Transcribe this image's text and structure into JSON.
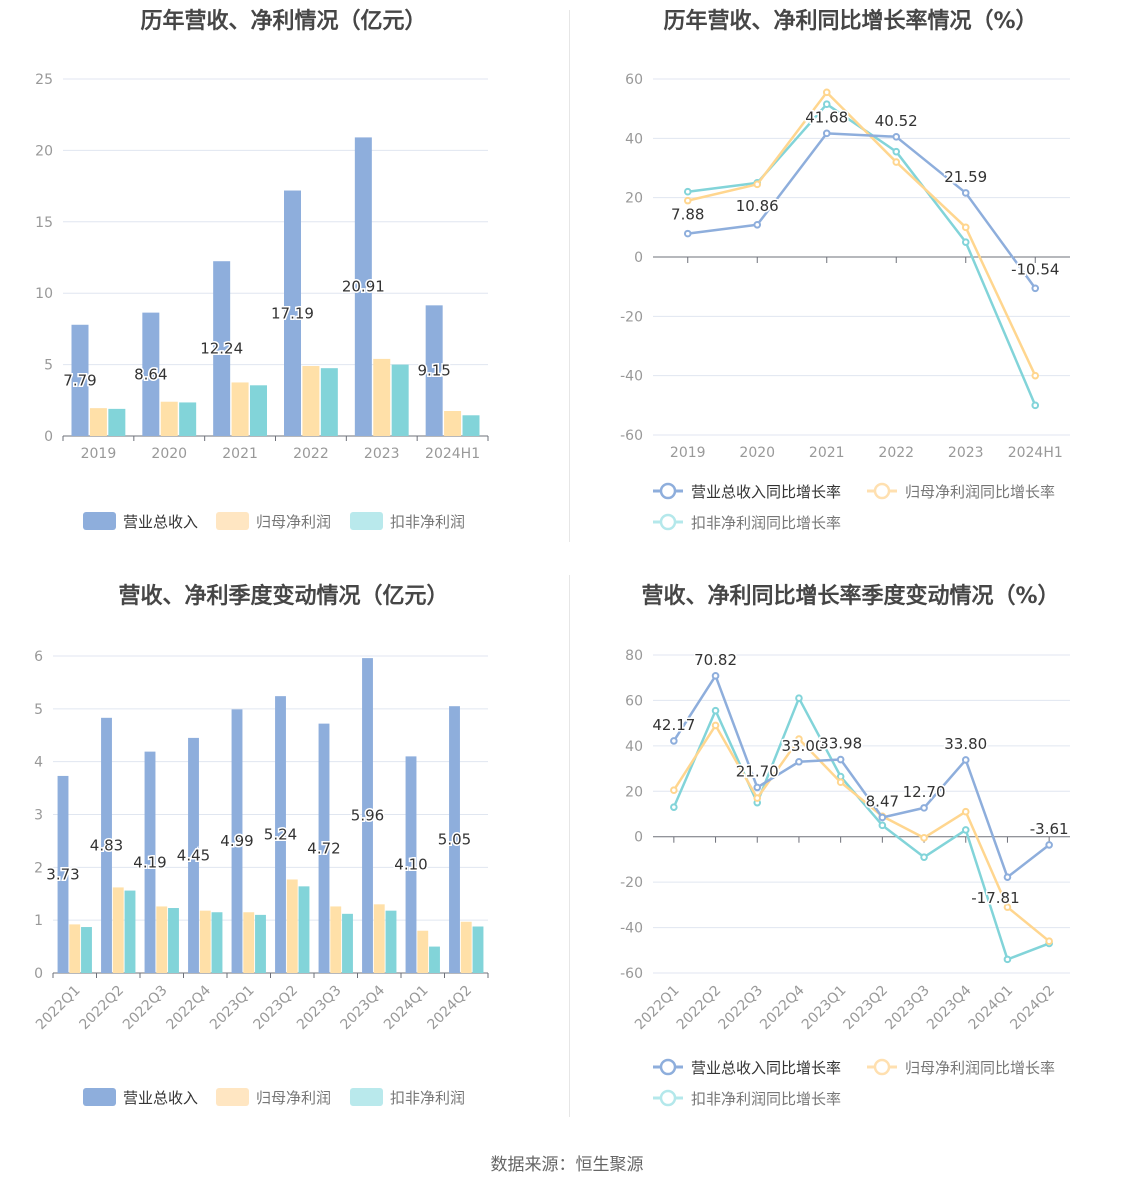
{
  "source": "数据来源：恒生聚源",
  "colors": {
    "revenue": "#8eaedc",
    "net_profit": "#ffe0a8",
    "deducted": "#82d4d9",
    "grid": "#e0e6f0",
    "axis": "#999999"
  },
  "chart_data": [
    {
      "id": "annual_values",
      "type": "bar",
      "title": "历年营收、净利情况（亿元）",
      "categories": [
        "2019",
        "2020",
        "2021",
        "2022",
        "2023",
        "2024H1"
      ],
      "ylim": [
        0,
        25
      ],
      "yticks": [
        0,
        5,
        10,
        15,
        20,
        25
      ],
      "series": [
        {
          "name": "营业总收入",
          "values": [
            7.79,
            8.64,
            12.24,
            17.19,
            20.91,
            9.15
          ],
          "labels": [
            "7.79",
            "8.64",
            "12.24",
            "17.19",
            "20.91",
            "9.15"
          ]
        },
        {
          "name": "归母净利润",
          "values": [
            1.95,
            2.4,
            3.75,
            4.9,
            5.4,
            1.75
          ]
        },
        {
          "name": "扣非净利润",
          "values": [
            1.9,
            2.35,
            3.55,
            4.75,
            5.0,
            1.45
          ]
        }
      ],
      "legend": "bottom"
    },
    {
      "id": "annual_growth",
      "type": "line",
      "title": "历年营收、净利同比增长率情况（%）",
      "categories": [
        "2019",
        "2020",
        "2021",
        "2022",
        "2023",
        "2024H1"
      ],
      "ylim": [
        -60,
        60
      ],
      "yticks": [
        -60,
        -40,
        -20,
        0,
        20,
        40,
        60
      ],
      "series": [
        {
          "name": "营业总收入同比增长率",
          "values": [
            7.88,
            10.86,
            41.68,
            40.52,
            21.59,
            -10.54
          ],
          "labels": [
            "7.88",
            "10.86",
            "41.68",
            "40.52",
            "21.59",
            "-10.54"
          ]
        },
        {
          "name": "归母净利润同比增长率",
          "values": [
            19,
            24.5,
            55.5,
            32,
            10,
            -40
          ]
        },
        {
          "name": "扣非净利润同比增长率",
          "values": [
            22,
            25,
            51.5,
            35.5,
            5,
            -50
          ]
        }
      ],
      "legend": "bottom"
    },
    {
      "id": "quarterly_values",
      "type": "bar",
      "title": "营收、净利季度变动情况（亿元）",
      "categories": [
        "2022Q1",
        "2022Q2",
        "2022Q3",
        "2022Q4",
        "2023Q1",
        "2023Q2",
        "2023Q3",
        "2023Q4",
        "2024Q1",
        "2024Q2"
      ],
      "ylim": [
        0,
        6
      ],
      "yticks": [
        0,
        1,
        2,
        3,
        4,
        5,
        6
      ],
      "series": [
        {
          "name": "营业总收入",
          "values": [
            3.73,
            4.83,
            4.19,
            4.45,
            4.99,
            5.24,
            4.72,
            5.96,
            4.1,
            5.05
          ],
          "labels": [
            "3.73",
            "4.83",
            "4.19",
            "4.45",
            "4.99",
            "5.24",
            "4.72",
            "5.96",
            "4.10",
            "5.05"
          ]
        },
        {
          "name": "归母净利润",
          "values": [
            0.92,
            1.62,
            1.26,
            1.18,
            1.15,
            1.77,
            1.26,
            1.3,
            0.8,
            0.97
          ]
        },
        {
          "name": "扣非净利润",
          "values": [
            0.87,
            1.56,
            1.23,
            1.15,
            1.1,
            1.64,
            1.12,
            1.18,
            0.5,
            0.88
          ]
        }
      ],
      "legend": "bottom"
    },
    {
      "id": "quarterly_growth",
      "type": "line",
      "title": "营收、净利同比增长率季度变动情况（%）",
      "categories": [
        "2022Q1",
        "2022Q2",
        "2022Q3",
        "2022Q4",
        "2023Q1",
        "2023Q2",
        "2023Q3",
        "2023Q4",
        "2024Q1",
        "2024Q2"
      ],
      "ylim": [
        -60,
        80
      ],
      "yticks": [
        -60,
        -40,
        -20,
        0,
        20,
        40,
        60,
        80
      ],
      "series": [
        {
          "name": "营业总收入同比增长率",
          "values": [
            42.17,
            70.82,
            21.7,
            33.0,
            33.98,
            8.47,
            12.7,
            33.8,
            -17.81,
            -3.61
          ],
          "labels": [
            "42.17",
            "70.82",
            "21.70",
            "33.00",
            "33.98",
            "8.47",
            "12.70",
            "33.80",
            "-17.81",
            "-3.61"
          ]
        },
        {
          "name": "归母净利润同比增长率",
          "values": [
            20.5,
            49,
            17,
            43,
            24,
            9,
            -0.5,
            11,
            -31,
            -46
          ]
        },
        {
          "name": "扣非净利润同比增长率",
          "values": [
            13,
            55.5,
            15,
            61,
            26.5,
            5,
            -9,
            3,
            -54,
            -47
          ]
        }
      ],
      "legend": "bottom"
    }
  ]
}
